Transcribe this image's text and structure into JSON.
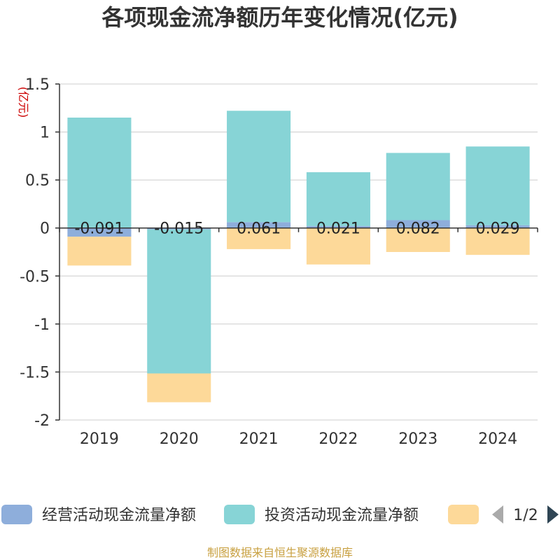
{
  "chart_data": {
    "type": "bar",
    "stacked": true,
    "title": "各项现金流净额历年变化情况(亿元)",
    "ylabel": "(亿元)",
    "ylim": [
      -2,
      1.5
    ],
    "yticks": [
      "1.5",
      "1",
      "0.5",
      "0",
      "-0.5",
      "-1",
      "-1.5",
      "-2"
    ],
    "ytick_values": [
      1.5,
      1,
      0.5,
      0,
      -0.5,
      -1,
      -1.5,
      -2
    ],
    "categories": [
      "2019",
      "2020",
      "2021",
      "2022",
      "2023",
      "2024"
    ],
    "series": [
      {
        "name": "经营活动现金流量净额",
        "color": "#8eaedb",
        "values": [
          -0.091,
          -0.015,
          0.061,
          0.021,
          0.082,
          0.029
        ],
        "labels": [
          "-0.091",
          "-0.015",
          "0.061",
          "0.021",
          "0.082",
          "0.029"
        ]
      },
      {
        "name": "投资活动现金流量净额",
        "color": "#87d4d6",
        "values": [
          1.15,
          -1.5,
          1.16,
          0.56,
          0.7,
          0.82
        ]
      },
      {
        "name": "",
        "color": "#fdd999",
        "values": [
          -0.3,
          -0.3,
          -0.22,
          -0.38,
          -0.25,
          -0.28
        ]
      }
    ],
    "grid": true,
    "legend_position": "bottom"
  },
  "legend": {
    "page": "1/2"
  },
  "source": "制图数据来自恒生聚源数据库"
}
